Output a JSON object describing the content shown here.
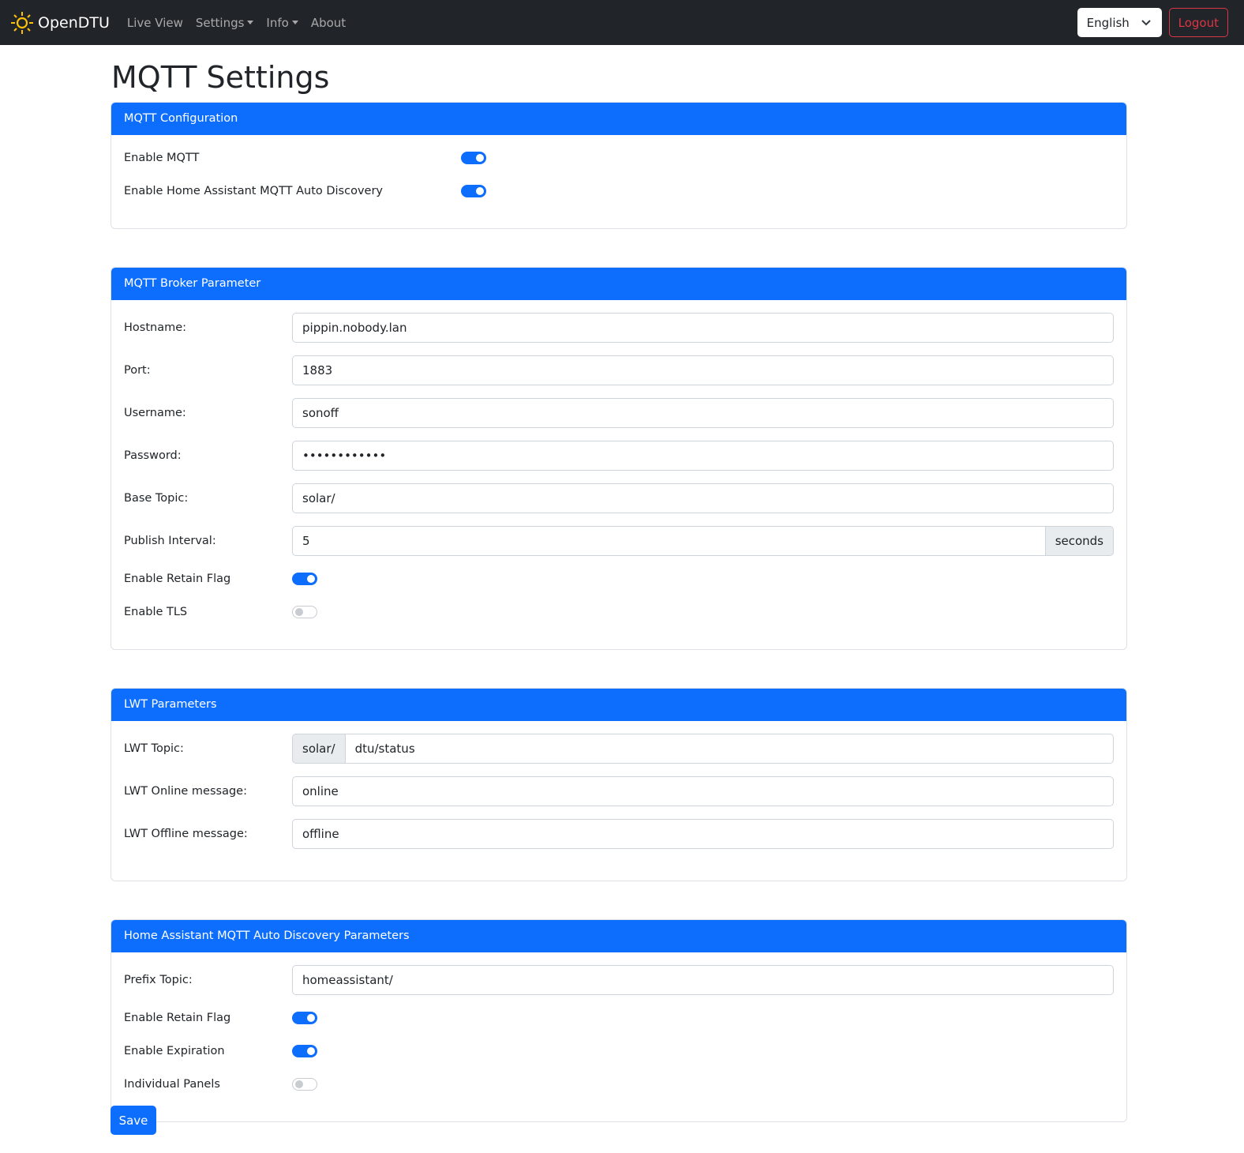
{
  "nav": {
    "brand": "OpenDTU",
    "links": [
      "Live View",
      "Settings",
      "Info",
      "About"
    ],
    "language": "English",
    "logout": "Logout"
  },
  "page_title": "MQTT Settings",
  "config": {
    "title": "MQTT Configuration",
    "enable_mqtt": {
      "label": "Enable MQTT",
      "on": true
    },
    "enable_ha": {
      "label": "Enable Home Assistant MQTT Auto Discovery",
      "on": true
    }
  },
  "broker": {
    "title": "MQTT Broker Parameter",
    "hostname": {
      "label": "Hostname:",
      "value": "pippin.nobody.lan"
    },
    "port": {
      "label": "Port:",
      "value": "1883"
    },
    "username": {
      "label": "Username:",
      "value": "sonoff"
    },
    "password": {
      "label": "Password:",
      "value": "••••••••••••"
    },
    "base_topic": {
      "label": "Base Topic:",
      "value": "solar/"
    },
    "interval": {
      "label": "Publish Interval:",
      "value": "5",
      "unit": "seconds"
    },
    "retain": {
      "label": "Enable Retain Flag",
      "on": true
    },
    "tls": {
      "label": "Enable TLS",
      "on": false
    }
  },
  "lwt": {
    "title": "LWT Parameters",
    "topic": {
      "label": "LWT Topic:",
      "prefix": "solar/",
      "value": "dtu/status"
    },
    "online": {
      "label": "LWT Online message:",
      "value": "online"
    },
    "offline": {
      "label": "LWT Offline message:",
      "value": "offline"
    }
  },
  "ha": {
    "title": "Home Assistant MQTT Auto Discovery Parameters",
    "prefix": {
      "label": "Prefix Topic:",
      "value": "homeassistant/"
    },
    "retain": {
      "label": "Enable Retain Flag",
      "on": true
    },
    "expiration": {
      "label": "Enable Expiration",
      "on": true
    },
    "panels": {
      "label": "Individual Panels",
      "on": false
    }
  },
  "save": "Save"
}
